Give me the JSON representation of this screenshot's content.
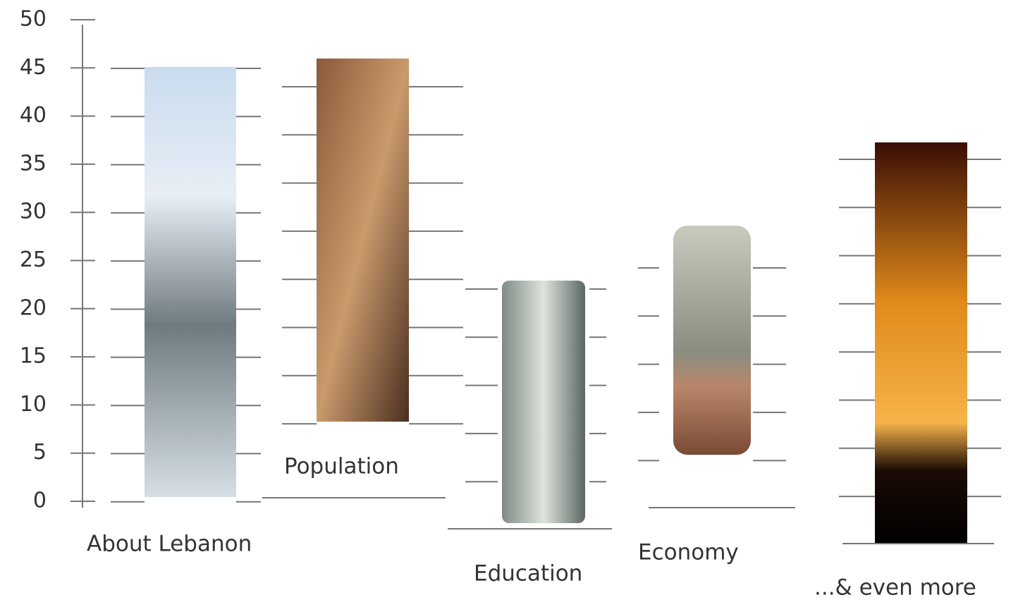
{
  "axis": {
    "ticks": [
      0,
      5,
      10,
      15,
      20,
      25,
      30,
      35,
      40,
      45,
      50
    ]
  },
  "items": [
    {
      "label": "About Lebanon"
    },
    {
      "label": "Population"
    },
    {
      "label": "Education"
    },
    {
      "label": "Economy"
    },
    {
      "label": "...& even more"
    }
  ]
}
